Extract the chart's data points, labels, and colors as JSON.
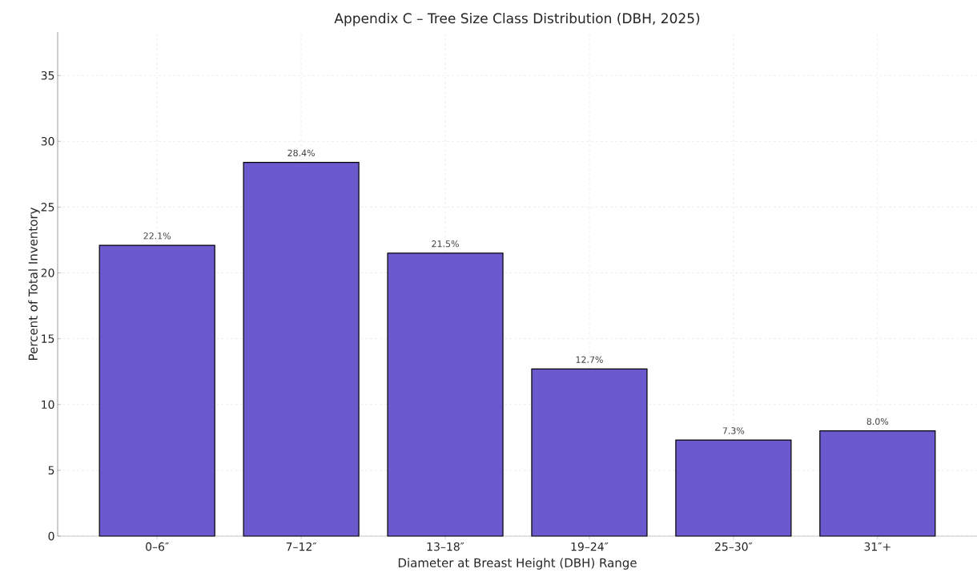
{
  "chart_data": {
    "type": "bar",
    "title": "Appendix C – Tree Size Class Distribution (DBH, 2025)",
    "xlabel": "Diameter at Breast Height (DBH) Range",
    "ylabel": "Percent of Total Inventory",
    "categories": [
      "0–6″",
      "7–12″",
      "13–18″",
      "19–24″",
      "25–30″",
      "31″+"
    ],
    "values": [
      22.1,
      28.4,
      21.5,
      12.7,
      7.3,
      8.0
    ],
    "value_labels": [
      "22.1%",
      "28.4%",
      "21.5%",
      "12.7%",
      "7.3%",
      "8.0%"
    ],
    "color": "#6a5acd",
    "ylim": [
      0,
      38.3
    ],
    "yticks": [
      0,
      5,
      10,
      15,
      20,
      25,
      30,
      35
    ],
    "grid": true
  }
}
